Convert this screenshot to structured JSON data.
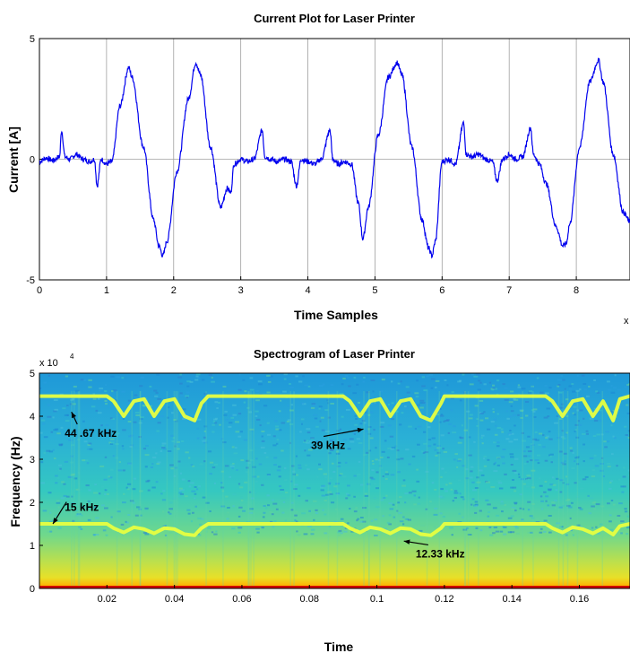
{
  "chart_data": [
    {
      "type": "line",
      "title": "Current Plot for Laser Printer",
      "xlabel": "Time Samples",
      "ylabel": "Current [A]",
      "xlim": [
        0,
        8.8
      ],
      "ylim": [
        -5,
        5
      ],
      "x_ticks": [
        "0",
        "1",
        "2",
        "3",
        "4",
        "5",
        "6",
        "7",
        "8"
      ],
      "y_ticks": [
        "5",
        "0",
        "-5"
      ],
      "x_exponent_label": "x",
      "grid": true,
      "line_color": "#0000ee",
      "series": [
        {
          "x": [
            0,
            0.1,
            0.2,
            0.3,
            0.33,
            0.38,
            0.45,
            0.55,
            0.65,
            0.75,
            0.82,
            0.86,
            0.92,
            1.0,
            1.08,
            1.2,
            1.33,
            1.38,
            1.55,
            1.7,
            1.78,
            1.84,
            1.9,
            2.05,
            2.22,
            2.33,
            2.4,
            2.55,
            2.7,
            2.8,
            2.85,
            2.9,
            3.0,
            3.1,
            3.2,
            3.32,
            3.36,
            3.45,
            3.55,
            3.65,
            3.75,
            3.83,
            3.9,
            4.0,
            4.1,
            4.2,
            4.33,
            4.37,
            4.45,
            4.55,
            4.65,
            4.75,
            4.82,
            4.9,
            5.05,
            5.2,
            5.33,
            5.4,
            5.55,
            5.7,
            5.8,
            5.85,
            5.9,
            6.0,
            6.1,
            6.2,
            6.32,
            6.36,
            6.45,
            6.55,
            6.65,
            6.75,
            6.82,
            6.9,
            7.0,
            7.1,
            7.2,
            7.32,
            7.36,
            7.45,
            7.55,
            7.7,
            7.8,
            7.85,
            7.9,
            8.05,
            8.2,
            8.33,
            8.4,
            8.55,
            8.7,
            8.8
          ],
          "y": [
            -0.1,
            0.05,
            -0.05,
            0.1,
            1.2,
            0.1,
            0.0,
            0.2,
            0.0,
            -0.1,
            0.0,
            -1.1,
            0.0,
            -0.2,
            -0.1,
            2.2,
            3.8,
            3.4,
            0.5,
            -2.5,
            -3.6,
            -4.0,
            -3.4,
            -0.5,
            2.5,
            4.0,
            3.5,
            0.5,
            -2.0,
            -1.2,
            -1.4,
            -0.2,
            0.0,
            -0.1,
            0.0,
            1.2,
            0.1,
            0.0,
            -0.1,
            0.0,
            -0.1,
            -1.1,
            0.0,
            -0.1,
            -0.2,
            0.0,
            1.2,
            0.0,
            -0.2,
            -0.1,
            -0.2,
            -1.8,
            -3.3,
            -2.0,
            1.0,
            3.4,
            4.0,
            3.5,
            0.5,
            -2.5,
            -3.7,
            -4.0,
            -3.4,
            -0.1,
            0.0,
            -0.2,
            1.5,
            0.2,
            0.1,
            0.2,
            0.0,
            -0.1,
            -0.9,
            0.0,
            0.2,
            0.0,
            0.1,
            1.3,
            0.2,
            -0.2,
            -1.0,
            -2.8,
            -3.6,
            -3.5,
            -2.7,
            0.5,
            3.2,
            4.1,
            3.2,
            0.2,
            -2.2,
            -2.6
          ]
        }
      ]
    },
    {
      "type": "heatmap",
      "title": "Spectrogram of Laser Printer",
      "xlabel": "Time",
      "ylabel": "Frequency (Hz)",
      "xlim": [
        0,
        0.175
      ],
      "ylim": [
        0,
        50000
      ],
      "y_exponent_label": "x 10",
      "y_exponent_power": "4",
      "x_ticks": [
        "0.02",
        "0.04",
        "0.06",
        "0.08",
        "0.1",
        "0.12",
        "0.14",
        "0.16"
      ],
      "y_ticks": [
        "0",
        "1",
        "2",
        "3",
        "4",
        "5"
      ],
      "colormap": "jet",
      "tone_tracks": [
        {
          "t": [
            0,
            0.02,
            0.022,
            0.025,
            0.028,
            0.031,
            0.034,
            0.037,
            0.04,
            0.043,
            0.046,
            0.048,
            0.05,
            0.09,
            0.092,
            0.095,
            0.098,
            0.101,
            0.104,
            0.107,
            0.11,
            0.113,
            0.116,
            0.119,
            0.12,
            0.15,
            0.152,
            0.155,
            0.158,
            0.161,
            0.164,
            0.167,
            0.17,
            0.172,
            0.175
          ],
          "freq_hz": [
            44670,
            44670,
            43500,
            40000,
            43500,
            44000,
            40000,
            43500,
            44000,
            40000,
            39000,
            43000,
            44670,
            44670,
            43500,
            40000,
            43500,
            44000,
            40000,
            43500,
            44000,
            40000,
            39000,
            43000,
            44670,
            44670,
            43500,
            40000,
            43500,
            44000,
            40000,
            43500,
            39000,
            44000,
            44670
          ]
        },
        {
          "t": [
            0,
            0.02,
            0.022,
            0.025,
            0.028,
            0.031,
            0.034,
            0.037,
            0.04,
            0.043,
            0.046,
            0.048,
            0.05,
            0.09,
            0.092,
            0.095,
            0.098,
            0.101,
            0.104,
            0.107,
            0.11,
            0.113,
            0.116,
            0.119,
            0.12,
            0.15,
            0.152,
            0.155,
            0.158,
            0.161,
            0.164,
            0.167,
            0.17,
            0.172,
            0.175
          ],
          "freq_hz": [
            15000,
            15000,
            14000,
            13000,
            14200,
            13800,
            12800,
            14000,
            13800,
            12600,
            12330,
            14000,
            15000,
            15000,
            14000,
            13000,
            14200,
            13800,
            12800,
            14000,
            13800,
            12600,
            12330,
            14000,
            15000,
            15000,
            14000,
            13000,
            14200,
            13800,
            12800,
            14000,
            12500,
            14500,
            15000
          ]
        }
      ],
      "annotations": [
        {
          "text": "44 .67 kHz",
          "t": 0.0075,
          "freq_hz": 35200,
          "arrow_to_t": 0.0095,
          "arrow_to_freq_hz": 41000
        },
        {
          "text": "39 kHz",
          "t": 0.0805,
          "freq_hz": 32400,
          "arrow_to_t": 0.096,
          "arrow_to_freq_hz": 37000
        },
        {
          "text": "15 kHz",
          "t": 0.0075,
          "freq_hz": 18000,
          "arrow_to_t": 0.004,
          "arrow_to_freq_hz": 15000
        },
        {
          "text": "12.33 kHz",
          "t": 0.1115,
          "freq_hz": 7200,
          "arrow_to_t": 0.108,
          "arrow_to_freq_hz": 11000
        }
      ]
    }
  ]
}
